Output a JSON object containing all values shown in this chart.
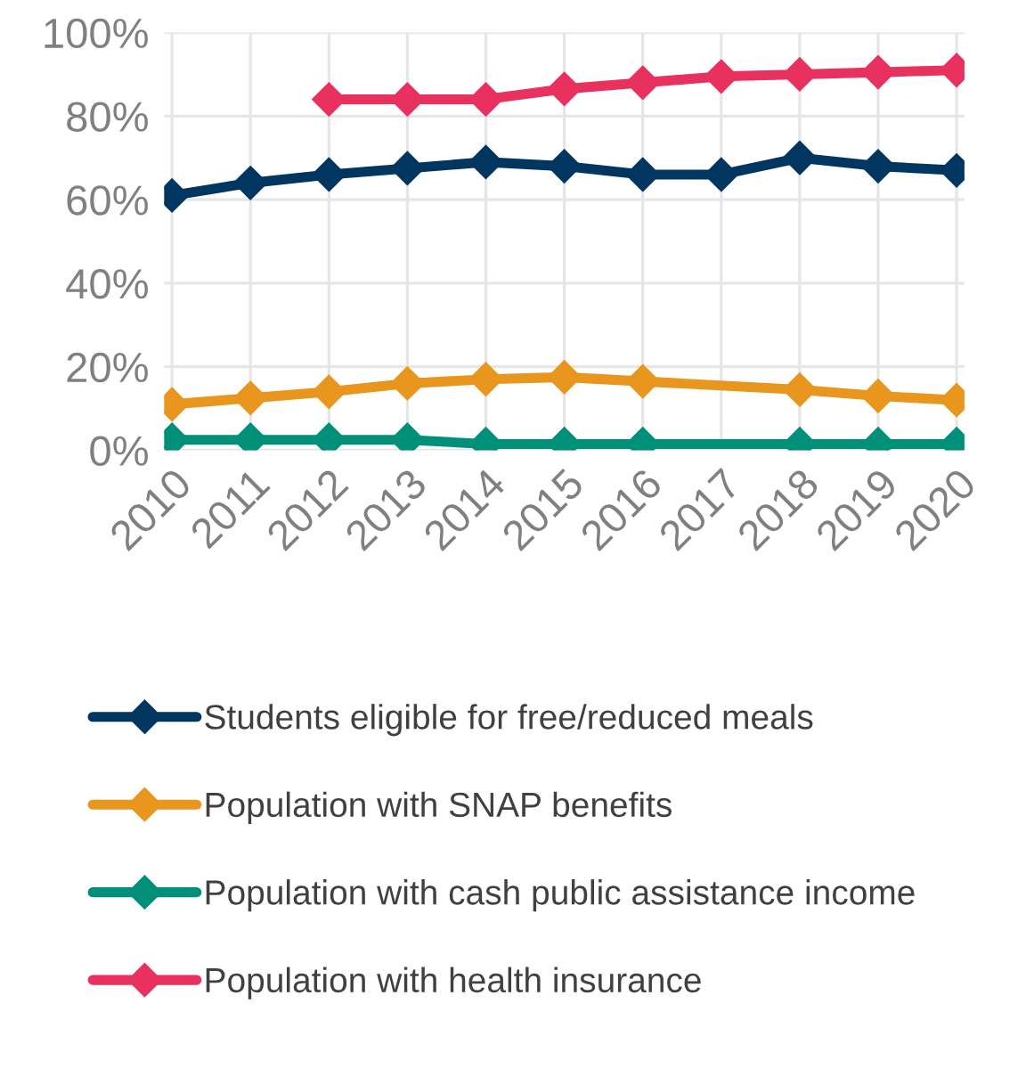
{
  "chart_data": {
    "type": "line",
    "categories": [
      "2010",
      "2011",
      "2012",
      "2013",
      "2014",
      "2015",
      "2016",
      "2017",
      "2018",
      "2019",
      "2020"
    ],
    "series": [
      {
        "name": "Students eligible for free/reduced meals",
        "color": "#00365f",
        "values": [
          61,
          64,
          66,
          67.5,
          69,
          68,
          66,
          66,
          70,
          68,
          67
        ]
      },
      {
        "name": "Population with SNAP benefits",
        "color": "#e8961d",
        "values": [
          11,
          12.5,
          14,
          16,
          17,
          17.5,
          16.5,
          null,
          14.5,
          13,
          12
        ]
      },
      {
        "name": "Population with cash public assistance income",
        "color": "#00907a",
        "values": [
          2.5,
          2.5,
          2.5,
          2.5,
          1.5,
          1.5,
          1.5,
          null,
          1.5,
          1.5,
          1.5
        ]
      },
      {
        "name": "Population with health insurance",
        "color": "#e8315f",
        "values": [
          null,
          null,
          84,
          84,
          84,
          86.5,
          88,
          89.5,
          90,
          90.5,
          91
        ]
      }
    ],
    "ylim": [
      0,
      100
    ],
    "yticks": [
      {
        "value": 0,
        "label": "0%"
      },
      {
        "value": 20,
        "label": "20%"
      },
      {
        "value": 40,
        "label": "40%"
      },
      {
        "value": 60,
        "label": "60%"
      },
      {
        "value": 80,
        "label": "80%"
      },
      {
        "value": 100,
        "label": "100%"
      }
    ],
    "grid": true,
    "legend": "bottom",
    "marker": "diamond",
    "line_style": "solid"
  }
}
